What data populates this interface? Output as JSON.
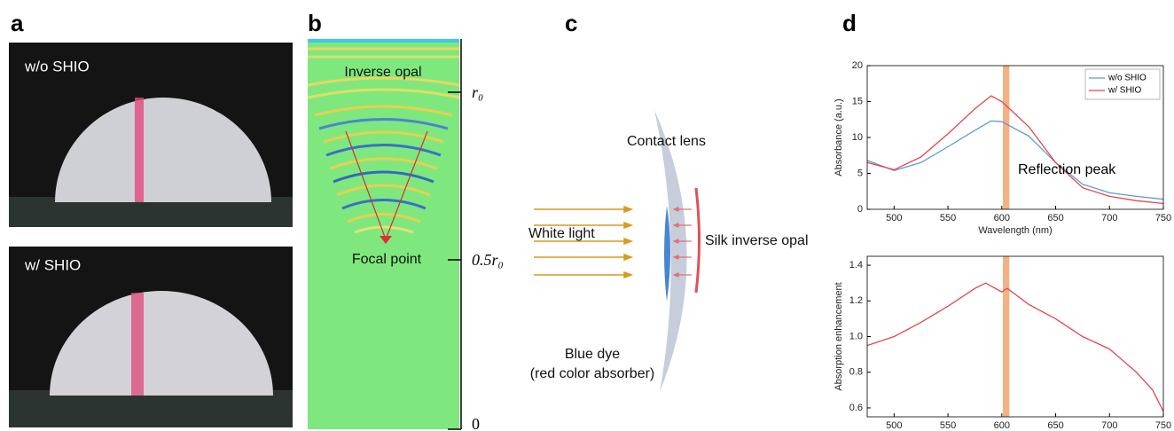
{
  "panel_labels": [
    "a",
    "b",
    "c",
    "d"
  ],
  "panel_a": {
    "top_label": "w/o SHIO",
    "bottom_label": "w/ SHIO"
  },
  "panel_b": {
    "top_text": "Inverse opal",
    "focal_text": "Focal point",
    "axis_labels": [
      "r₀",
      "0.5r₀",
      "0"
    ]
  },
  "panel_c": {
    "lens_label": "Contact lens",
    "light_label": "White light",
    "opal_label": "Silk inverse opal",
    "dye_label": "Blue dye",
    "dye_note": "(red color absorber)"
  },
  "chart_data": [
    {
      "type": "line",
      "xlabel": "Wavelength (nm)",
      "ylabel": "Absorbance (a.u.)",
      "annotation": "Reflection peak",
      "highlight": [
        601,
        607
      ],
      "highlight_color": "#f4b183",
      "x": [
        475,
        500,
        525,
        550,
        575,
        590,
        600,
        625,
        650,
        675,
        700,
        725,
        750
      ],
      "series": [
        {
          "name": "w/o SHIO",
          "color": "#5b9bd5",
          "values": [
            6.8,
            5.4,
            6.5,
            8.7,
            11.0,
            12.3,
            12.2,
            10.2,
            6.5,
            3.5,
            2.3,
            1.8,
            1.4
          ]
        },
        {
          "name": "w/ SHIO",
          "color": "#e8464a",
          "values": [
            6.5,
            5.5,
            7.3,
            10.5,
            14.0,
            15.8,
            15.0,
            11.5,
            6.5,
            3.0,
            1.8,
            1.2,
            0.8
          ]
        }
      ],
      "xlim": [
        475,
        750
      ],
      "xticks": [
        500,
        550,
        600,
        650,
        700,
        750
      ],
      "ylim": [
        0,
        20
      ],
      "yticks": [
        0,
        5,
        10,
        15,
        20
      ],
      "legend": "upper right"
    },
    {
      "type": "line",
      "xlabel": "Wavelength (nm)",
      "ylabel": "Absorption enhancement",
      "highlight": [
        601,
        607
      ],
      "highlight_color": "#f4b183",
      "color": "#e8464a",
      "x": [
        475,
        500,
        525,
        550,
        575,
        585,
        600,
        605,
        625,
        650,
        675,
        700,
        725,
        740,
        750
      ],
      "values": [
        0.95,
        1.0,
        1.08,
        1.17,
        1.27,
        1.3,
        1.25,
        1.27,
        1.18,
        1.1,
        1.0,
        0.93,
        0.8,
        0.7,
        0.58
      ],
      "xlim": [
        475,
        750
      ],
      "xticks": [
        500,
        550,
        600,
        650,
        700,
        750
      ],
      "ylim": [
        0.55,
        1.45
      ],
      "yticks": [
        0.6,
        0.8,
        {
          "value": 1,
          "label": "1.0"
        },
        1.2,
        1.4
      ]
    }
  ]
}
